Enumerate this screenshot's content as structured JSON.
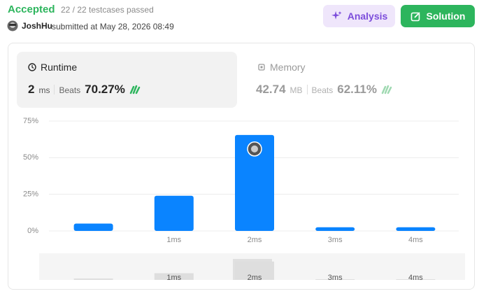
{
  "header": {
    "status": "Accepted",
    "testcases": "22 / 22 testcases passed",
    "user": "JoshHu",
    "submitted": "submitted at May 28, 2026 08:49",
    "buttons": [
      "Analysis",
      "Solution"
    ]
  },
  "runtime": {
    "title": "Runtime",
    "value": "2",
    "unit": "ms",
    "beats_label": "Beats",
    "beats": "70.27%"
  },
  "memory": {
    "title": "Memory",
    "value": "42.74",
    "unit": "MB",
    "beats_label": "Beats",
    "beats": "62.11%"
  },
  "chart_data": {
    "type": "bar",
    "categories": [
      null,
      "1ms",
      "2ms",
      "3ms",
      "4ms"
    ],
    "values": [
      5,
      24,
      65.5,
      2.5,
      2.5
    ],
    "color": "#0a84ff",
    "ylim": [
      0,
      75
    ],
    "yticks": [
      {
        "value": 0,
        "label": "0%"
      },
      {
        "value": 25,
        "label": "25%"
      },
      {
        "value": 50,
        "label": "50%"
      },
      {
        "value": 75,
        "label": "75%"
      }
    ],
    "grid": true
  }
}
